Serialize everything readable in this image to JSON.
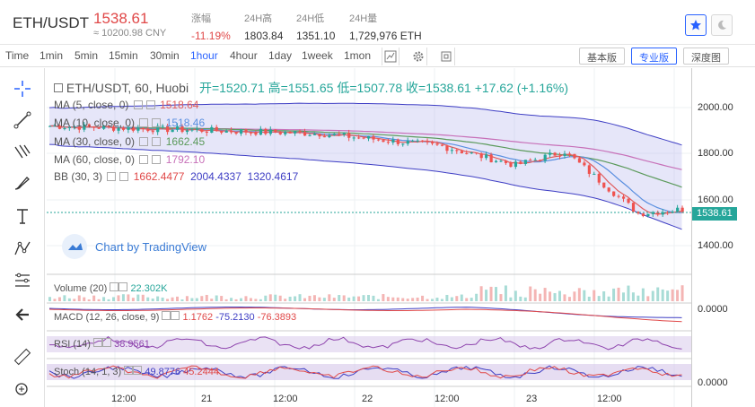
{
  "header": {
    "pair": "ETH/USDT",
    "price": "1538.61",
    "cny": "≈ 10200.98 CNY",
    "stats": [
      {
        "label": "涨幅",
        "value": "-11.19%"
      },
      {
        "label": "24H高",
        "value": "1803.84"
      },
      {
        "label": "24H低",
        "value": "1351.10"
      },
      {
        "label": "24H量",
        "value": "1,729,976 ETH"
      }
    ]
  },
  "toolbar": {
    "timeframes": [
      "Time",
      "1min",
      "5min",
      "15min",
      "30min",
      "1hour",
      "4hour",
      "1day",
      "1week",
      "1mon"
    ],
    "active": "1hour",
    "views": [
      "基本版",
      "专业版",
      "深度图"
    ],
    "active_view": "专业版"
  },
  "legend": {
    "title": "ETH/USDT, 60, Huobi",
    "open": "开=1520.71",
    "high": "高=1551.65",
    "low": "低=1507.78",
    "close": "收=1538.61",
    "change": "+17.62 (+1.16%)",
    "ma5": {
      "label": "MA (5, close, 0)",
      "value": "1518.64"
    },
    "ma10": {
      "label": "MA (10, close, 0)",
      "value": "1518.46"
    },
    "ma30": {
      "label": "MA (30, close, 0)",
      "value": "1662.45"
    },
    "ma60": {
      "label": "MA (60, close, 0)",
      "value": "1792.10"
    },
    "bb": {
      "label": "BB (30, 3)",
      "v1": "1662.4477",
      "v2": "2004.4337",
      "v3": "1320.4617"
    }
  },
  "watermark": "Chart by TradingView",
  "panes": {
    "volume": {
      "label": "Volume (20)",
      "value": "22.302K"
    },
    "macd": {
      "label": "MACD (12, 26, close, 9)",
      "v1": "1.1762",
      "v2": "-75.2130",
      "v3": "-76.3893",
      "axis": "0.0000"
    },
    "rsi": {
      "label": "RSI (14)",
      "value": "38.9561"
    },
    "stoch": {
      "label": "Stoch (14, 1, 3)",
      "v1": "49.8776",
      "v2": "45.2444",
      "axis": "0.0000"
    }
  },
  "yaxis": [
    "2000.00",
    "1800.00",
    "1600.00",
    "1400.00"
  ],
  "last_price_tag": "1538.61",
  "xaxis": [
    "12:00",
    "21",
    "12:00",
    "22",
    "12:00",
    "23",
    "12:00"
  ],
  "colors": {
    "up": "#26a69a",
    "down": "#ef5350",
    "accent": "#2962ff"
  }
}
